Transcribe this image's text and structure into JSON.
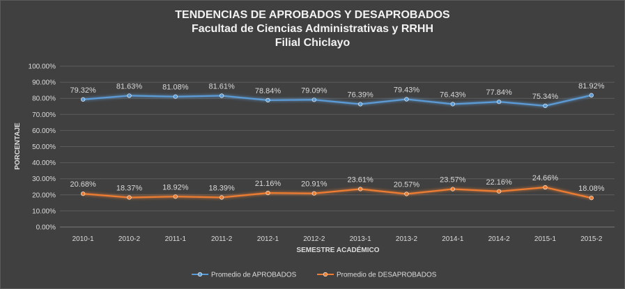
{
  "chart_data": {
    "type": "line",
    "title": [
      "TENDENCIAS DE APROBADOS Y DESAPROBADOS",
      "Facultad de Ciencias Administrativas y RRHH",
      "Filial Chiclayo"
    ],
    "xlabel": "SEMESTRE ACADÉMICO",
    "ylabel": "PORCENTAJE",
    "ylim": [
      0,
      100
    ],
    "yticks": [
      "0.00%",
      "10.00%",
      "20.00%",
      "30.00%",
      "40.00%",
      "50.00%",
      "60.00%",
      "70.00%",
      "80.00%",
      "90.00%",
      "100.00%"
    ],
    "categories": [
      "2010-1",
      "2010-2",
      "2011-1",
      "2011-2",
      "2012-1",
      "2012-2",
      "2013-1",
      "2013-2",
      "2014-1",
      "2014-2",
      "2015-1",
      "2015-2"
    ],
    "grid": true,
    "legend_position": "bottom",
    "series": [
      {
        "name": "Promedio de APROBADOS",
        "color": "#5b9bd5",
        "values": [
          79.32,
          81.63,
          81.08,
          81.61,
          78.84,
          79.09,
          76.39,
          79.43,
          76.43,
          77.84,
          75.34,
          81.92
        ],
        "labels": [
          "79.32%",
          "81.63%",
          "81.08%",
          "81.61%",
          "78.84%",
          "79.09%",
          "76.39%",
          "79.43%",
          "76.43%",
          "77.84%",
          "75.34%",
          "81.92%"
        ]
      },
      {
        "name": "Promedio de DESAPROBADOS",
        "color": "#ed7d31",
        "values": [
          20.68,
          18.37,
          18.92,
          18.39,
          21.16,
          20.91,
          23.61,
          20.57,
          23.57,
          22.16,
          24.66,
          18.08
        ],
        "labels": [
          "20.68%",
          "18.37%",
          "18.92%",
          "18.39%",
          "21.16%",
          "20.91%",
          "23.61%",
          "20.57%",
          "23.57%",
          "22.16%",
          "24.66%",
          "18.08%"
        ]
      }
    ]
  }
}
